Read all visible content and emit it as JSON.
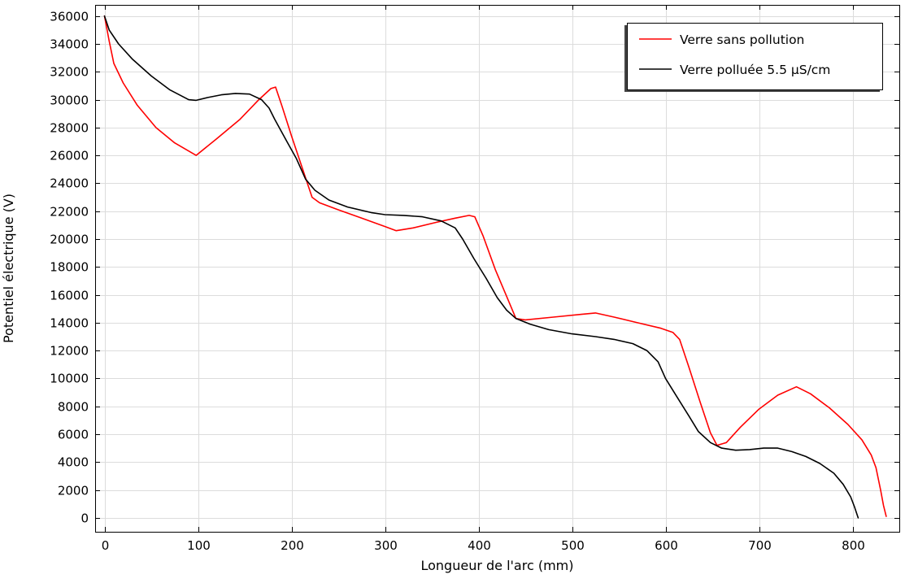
{
  "chart_data": {
    "type": "line",
    "title": "",
    "xlabel": "Longueur de l'arc (mm)",
    "ylabel": "Potentiel électrique (V)",
    "xlim": [
      -10,
      850
    ],
    "ylim": [
      -1000,
      36800
    ],
    "x_ticks": [
      0,
      100,
      200,
      300,
      400,
      500,
      600,
      700,
      800
    ],
    "y_ticks": [
      0,
      2000,
      4000,
      6000,
      8000,
      10000,
      12000,
      14000,
      16000,
      18000,
      20000,
      22000,
      24000,
      26000,
      28000,
      30000,
      32000,
      34000,
      36000
    ],
    "grid": true,
    "legend_position": "top-right",
    "colors": {
      "series_1": "#ff0000",
      "series_2": "#000000"
    },
    "series": [
      {
        "name": "Verre sans pollution",
        "color": "#ff0000",
        "points": [
          [
            0,
            36000
          ],
          [
            5,
            34200
          ],
          [
            10,
            32600
          ],
          [
            20,
            31200
          ],
          [
            35,
            29600
          ],
          [
            55,
            28000
          ],
          [
            75,
            26900
          ],
          [
            98,
            26000
          ],
          [
            120,
            27200
          ],
          [
            145,
            28600
          ],
          [
            165,
            30000
          ],
          [
            178,
            30800
          ],
          [
            183,
            30900
          ],
          [
            190,
            29500
          ],
          [
            200,
            27400
          ],
          [
            212,
            25000
          ],
          [
            222,
            23000
          ],
          [
            230,
            22600
          ],
          [
            250,
            22100
          ],
          [
            275,
            21500
          ],
          [
            300,
            20900
          ],
          [
            312,
            20600
          ],
          [
            330,
            20800
          ],
          [
            355,
            21200
          ],
          [
            375,
            21500
          ],
          [
            390,
            21700
          ],
          [
            396,
            21600
          ],
          [
            405,
            20200
          ],
          [
            418,
            17800
          ],
          [
            430,
            15900
          ],
          [
            440,
            14300
          ],
          [
            450,
            14200
          ],
          [
            480,
            14400
          ],
          [
            510,
            14600
          ],
          [
            525,
            14700
          ],
          [
            545,
            14400
          ],
          [
            570,
            14000
          ],
          [
            595,
            13600
          ],
          [
            608,
            13300
          ],
          [
            615,
            12800
          ],
          [
            625,
            10800
          ],
          [
            637,
            8300
          ],
          [
            648,
            6100
          ],
          [
            655,
            5200
          ],
          [
            665,
            5400
          ],
          [
            680,
            6500
          ],
          [
            700,
            7800
          ],
          [
            720,
            8800
          ],
          [
            740,
            9400
          ],
          [
            755,
            8900
          ],
          [
            775,
            7900
          ],
          [
            795,
            6700
          ],
          [
            810,
            5600
          ],
          [
            820,
            4500
          ],
          [
            825,
            3600
          ],
          [
            830,
            2000
          ],
          [
            833,
            900
          ],
          [
            836,
            100
          ]
        ]
      },
      {
        "name": "Verre polluée 5.5  µS/cm",
        "color": "#000000",
        "points": [
          [
            0,
            36000
          ],
          [
            5,
            35000
          ],
          [
            15,
            34000
          ],
          [
            30,
            32900
          ],
          [
            50,
            31700
          ],
          [
            70,
            30700
          ],
          [
            90,
            30000
          ],
          [
            98,
            29950
          ],
          [
            110,
            30150
          ],
          [
            125,
            30350
          ],
          [
            140,
            30450
          ],
          [
            155,
            30400
          ],
          [
            168,
            30000
          ],
          [
            176,
            29400
          ],
          [
            182,
            28600
          ],
          [
            195,
            27000
          ],
          [
            205,
            25800
          ],
          [
            215,
            24300
          ],
          [
            225,
            23500
          ],
          [
            240,
            22800
          ],
          [
            260,
            22300
          ],
          [
            285,
            21900
          ],
          [
            300,
            21750
          ],
          [
            320,
            21700
          ],
          [
            340,
            21600
          ],
          [
            360,
            21300
          ],
          [
            375,
            20800
          ],
          [
            383,
            20000
          ],
          [
            395,
            18600
          ],
          [
            408,
            17200
          ],
          [
            420,
            15800
          ],
          [
            430,
            14900
          ],
          [
            440,
            14300
          ],
          [
            455,
            13900
          ],
          [
            475,
            13500
          ],
          [
            500,
            13200
          ],
          [
            525,
            13000
          ],
          [
            545,
            12800
          ],
          [
            565,
            12500
          ],
          [
            580,
            12000
          ],
          [
            592,
            11200
          ],
          [
            600,
            10000
          ],
          [
            612,
            8700
          ],
          [
            625,
            7300
          ],
          [
            635,
            6200
          ],
          [
            648,
            5400
          ],
          [
            660,
            5000
          ],
          [
            675,
            4850
          ],
          [
            690,
            4900
          ],
          [
            705,
            5000
          ],
          [
            720,
            5000
          ],
          [
            735,
            4750
          ],
          [
            750,
            4400
          ],
          [
            765,
            3900
          ],
          [
            780,
            3200
          ],
          [
            790,
            2400
          ],
          [
            798,
            1500
          ],
          [
            802,
            800
          ],
          [
            806,
            0
          ]
        ]
      }
    ]
  }
}
